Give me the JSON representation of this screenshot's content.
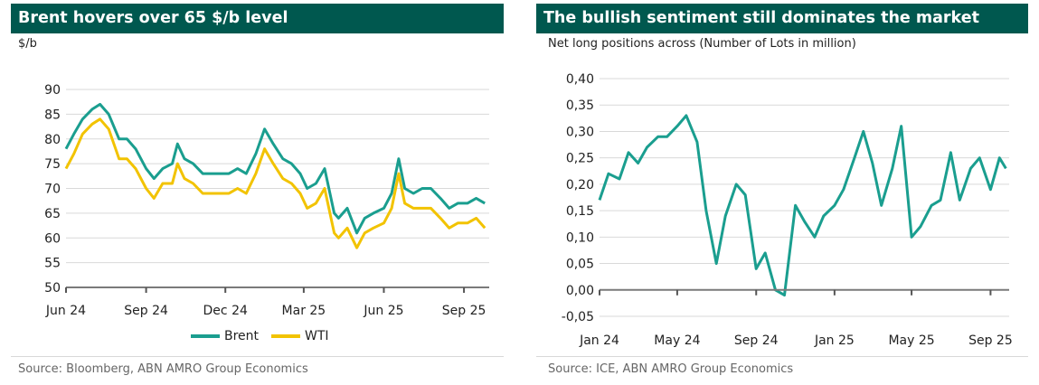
{
  "left": {
    "title": "Brent hovers over 65 $/b level",
    "unit": "$/b",
    "source": "Source: Bloomberg, ABN AMRO Group Economics",
    "legend": [
      {
        "label": "Brent",
        "color": "#1a9e8f"
      },
      {
        "label": "WTI",
        "color": "#f2c300"
      }
    ]
  },
  "right": {
    "title": "The bullish sentiment still dominates the market",
    "subtitle": "Net long positions across  (Number of Lots in million)",
    "source": "Source: ICE, ABN AMRO Group Economics"
  },
  "chart_data": [
    {
      "type": "line",
      "title": "Brent hovers over 65 $/b level",
      "ylabel": "$/b",
      "ylim": [
        50,
        90
      ],
      "yticks": [
        "50",
        "55",
        "60",
        "65",
        "70",
        "75",
        "80",
        "85",
        "90"
      ],
      "xticks": [
        "Jun 24",
        "Sep 24",
        "Dec 24",
        "Mar 25",
        "Jun 25",
        "Sep 25"
      ],
      "grid": true,
      "legend_position": "bottom",
      "x": [
        "2024-06-01",
        "2024-06-10",
        "2024-06-20",
        "2024-07-01",
        "2024-07-10",
        "2024-07-20",
        "2024-08-01",
        "2024-08-10",
        "2024-08-20",
        "2024-09-01",
        "2024-09-10",
        "2024-09-20",
        "2024-10-01",
        "2024-10-07",
        "2024-10-15",
        "2024-10-25",
        "2024-11-05",
        "2024-11-15",
        "2024-11-25",
        "2024-12-05",
        "2024-12-15",
        "2024-12-25",
        "2025-01-05",
        "2025-01-15",
        "2025-01-25",
        "2025-02-05",
        "2025-02-15",
        "2025-02-25",
        "2025-03-05",
        "2025-03-15",
        "2025-03-25",
        "2025-04-05",
        "2025-04-10",
        "2025-04-20",
        "2025-05-01",
        "2025-05-10",
        "2025-05-20",
        "2025-06-01",
        "2025-06-10",
        "2025-06-18",
        "2025-06-25",
        "2025-07-05",
        "2025-07-15",
        "2025-07-25",
        "2025-08-05",
        "2025-08-15",
        "2025-08-25",
        "2025-09-05",
        "2025-09-15",
        "2025-09-25"
      ],
      "series": [
        {
          "name": "Brent",
          "color": "#1a9e8f",
          "values": [
            78,
            81,
            84,
            86,
            87,
            85,
            80,
            80,
            78,
            74,
            72,
            74,
            75,
            79,
            76,
            75,
            73,
            73,
            73,
            73,
            74,
            73,
            77,
            82,
            79,
            76,
            75,
            73,
            70,
            71,
            74,
            65,
            64,
            66,
            61,
            64,
            65,
            66,
            69,
            76,
            70,
            69,
            70,
            70,
            68,
            66,
            67,
            67,
            68,
            67
          ]
        },
        {
          "name": "WTI",
          "color": "#f2c300",
          "values": [
            74,
            77,
            81,
            83,
            84,
            82,
            76,
            76,
            74,
            70,
            68,
            71,
            71,
            75,
            72,
            71,
            69,
            69,
            69,
            69,
            70,
            69,
            73,
            78,
            75,
            72,
            71,
            69,
            66,
            67,
            70,
            61,
            60,
            62,
            58,
            61,
            62,
            63,
            66,
            73,
            67,
            66,
            66,
            66,
            64,
            62,
            63,
            63,
            64,
            62
          ]
        }
      ]
    },
    {
      "type": "line",
      "title": "The bullish sentiment still dominates the market",
      "ylabel": "Net long positions across  (Number of Lots in million)",
      "ylim": [
        -0.05,
        0.4
      ],
      "yticks": [
        "-0,05",
        "0,00",
        "0,05",
        "0,10",
        "0,15",
        "0,20",
        "0,25",
        "0,30",
        "0,35",
        "0,40"
      ],
      "xticks": [
        "Jan 24",
        "May 24",
        "Sep 24",
        "Jan 25",
        "May 25",
        "Sep 25"
      ],
      "grid": true,
      "x": [
        "2024-01-01",
        "2024-01-15",
        "2024-02-01",
        "2024-02-15",
        "2024-03-01",
        "2024-03-15",
        "2024-04-01",
        "2024-04-15",
        "2024-05-01",
        "2024-05-15",
        "2024-06-01",
        "2024-06-15",
        "2024-07-01",
        "2024-07-15",
        "2024-08-01",
        "2024-08-15",
        "2024-09-01",
        "2024-09-15",
        "2024-10-01",
        "2024-10-15",
        "2024-11-01",
        "2024-11-15",
        "2024-12-01",
        "2024-12-15",
        "2025-01-01",
        "2025-01-15",
        "2025-02-01",
        "2025-02-15",
        "2025-03-01",
        "2025-03-15",
        "2025-04-01",
        "2025-04-15",
        "2025-05-01",
        "2025-05-15",
        "2025-06-01",
        "2025-06-15",
        "2025-07-01",
        "2025-07-15",
        "2025-08-01",
        "2025-08-15",
        "2025-09-01",
        "2025-09-15",
        "2025-09-25"
      ],
      "series": [
        {
          "name": "",
          "color": "#1a9e8f",
          "values": [
            0.17,
            0.22,
            0.21,
            0.26,
            0.24,
            0.27,
            0.29,
            0.29,
            0.31,
            0.33,
            0.28,
            0.15,
            0.05,
            0.14,
            0.2,
            0.18,
            0.04,
            0.07,
            0.0,
            -0.01,
            0.16,
            0.13,
            0.1,
            0.14,
            0.16,
            0.19,
            0.25,
            0.3,
            0.24,
            0.16,
            0.23,
            0.31,
            0.1,
            0.12,
            0.16,
            0.17,
            0.26,
            0.17,
            0.23,
            0.25,
            0.19,
            0.25,
            0.23
          ]
        }
      ]
    }
  ]
}
